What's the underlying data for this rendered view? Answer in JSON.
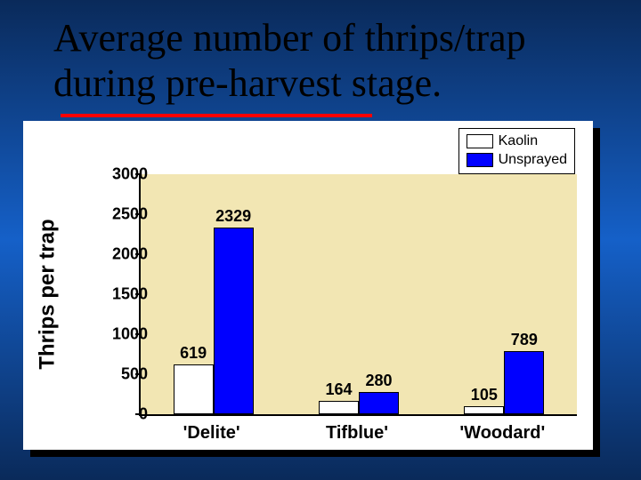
{
  "title": {
    "line1": "Average number of thrips/trap",
    "line2": "during pre-harvest stage.",
    "font_family": "Times New Roman",
    "font_size_pt": 44,
    "color": "#000000"
  },
  "chart": {
    "type": "bar",
    "background_color": "#ffffff",
    "plot_background": "#f2e6b3",
    "ylabel": "Thrips per trap",
    "ylabel_fontsize": 24,
    "ylim": [
      0,
      3000
    ],
    "ytick_step": 500,
    "yticks": [
      0,
      500,
      1000,
      1500,
      2000,
      2500,
      3000
    ],
    "categories": [
      "'Delite'",
      "Tifblue'",
      "'Woodard'"
    ],
    "series": [
      {
        "name": "Kaolin",
        "color": "#ffffff",
        "values": [
          619,
          164,
          105
        ]
      },
      {
        "name": "Unsprayed",
        "color": "#0000ff",
        "values": [
          2329,
          280,
          789
        ]
      }
    ],
    "bar_label_fontsize": 18,
    "tick_label_fontsize": 18,
    "xlabel_fontsize": 20,
    "legend_fontsize": 16,
    "bar_border_color": "#000000",
    "axis_color": "#000000"
  },
  "slide_background": "linear-gradient blue"
}
